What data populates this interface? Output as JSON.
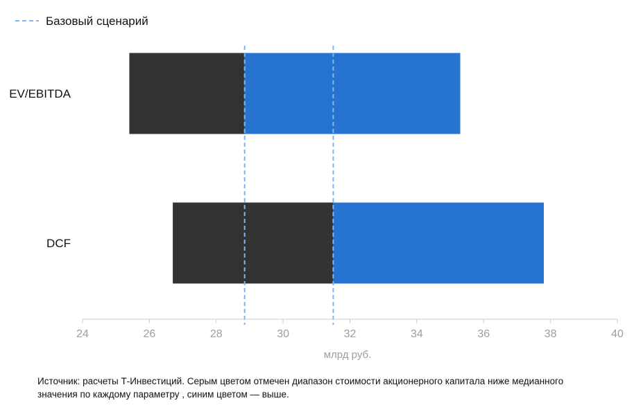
{
  "chart_data": {
    "type": "bar",
    "subtype": "tornado",
    "categories": [
      "EV/EBITDA",
      "DCF"
    ],
    "series": [
      {
        "name": "",
        "color": "#333333",
        "ranges": [
          [
            25.4,
            28.85
          ],
          [
            26.7,
            31.5
          ]
        ]
      },
      {
        "name": "",
        "color": "#2673d1",
        "ranges": [
          [
            28.85,
            35.3
          ],
          [
            31.5,
            37.8
          ]
        ]
      }
    ],
    "reference_lines": [
      {
        "label": "Базовый сценарий",
        "values": [
          28.85,
          31.5
        ],
        "color": "#7fb6ea",
        "style": "dashed"
      }
    ],
    "legend": {
      "position": "top-left",
      "label": "Базовый сценарий"
    },
    "xlim": [
      24,
      40
    ],
    "xticks": [
      24,
      26,
      28,
      30,
      32,
      34,
      36,
      38,
      40
    ],
    "xlabel": "млрд руб.",
    "ylabel": "",
    "title": "",
    "grid": false
  },
  "footnote": "Источник: расчеты Т-Инвестиций. Серым цветом отмечен диапазон стоимости акционерного капитала ниже медианного значения по каждому параметру , синим цветом — выше."
}
